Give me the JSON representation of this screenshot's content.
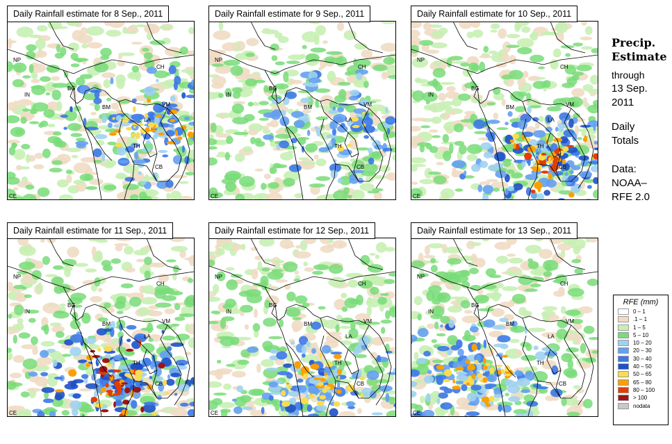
{
  "panels": [
    {
      "title": "Daily Rainfall estimate for  8 Sep., 2011",
      "intensity": "moderate",
      "focus": "east"
    },
    {
      "title": "Daily Rainfall estimate for  9 Sep., 2011",
      "intensity": "light",
      "focus": "east"
    },
    {
      "title": "Daily Rainfall estimate for  10 Sep., 2011",
      "intensity": "heavy",
      "focus": "southeast"
    },
    {
      "title": "Daily Rainfall estimate for  11 Sep., 2011",
      "intensity": "very-heavy",
      "focus": "south"
    },
    {
      "title": "Daily Rainfall estimate for  12 Sep., 2011",
      "intensity": "moderate",
      "focus": "south"
    },
    {
      "title": "Daily Rainfall estimate for  13 Sep., 2011",
      "intensity": "moderate",
      "focus": "southwest"
    }
  ],
  "country_labels": [
    "NP",
    "CH",
    "IN",
    "BG",
    "BM",
    "VM",
    "LA",
    "TH",
    "CB",
    "CE"
  ],
  "sidebar": {
    "title_line1": "Precip.",
    "title_line2": "Estimate",
    "through": "through",
    "date_line1": "13 Sep.",
    "date_line2": "2011",
    "daily_line1": "Daily",
    "daily_line2": "Totals",
    "data_line1": "Data:",
    "data_line2": "NOAA–",
    "data_line3": "RFE 2.0"
  },
  "legend": {
    "title": "RFE (mm)",
    "items": [
      {
        "label": "0 – 1",
        "color": "#ffffff"
      },
      {
        "label": ".1 – 1",
        "color": "#f0dcc4"
      },
      {
        "label": "1 – 5",
        "color": "#c8f0b4"
      },
      {
        "label": "5 – 10",
        "color": "#78dc78"
      },
      {
        "label": "10 – 20",
        "color": "#a0d2f0"
      },
      {
        "label": "20 – 30",
        "color": "#64a0f0"
      },
      {
        "label": "30 – 40",
        "color": "#3c78e6"
      },
      {
        "label": "40 – 50",
        "color": "#1e50c8"
      },
      {
        "label": "50 – 65",
        "color": "#fadc50"
      },
      {
        "label": "65 – 80",
        "color": "#faa000"
      },
      {
        "label": "80 – 100",
        "color": "#e63c00"
      },
      {
        "label": "> 100",
        "color": "#a01414"
      },
      {
        "label": "nodata",
        "color": "#c8c8c8"
      }
    ]
  }
}
